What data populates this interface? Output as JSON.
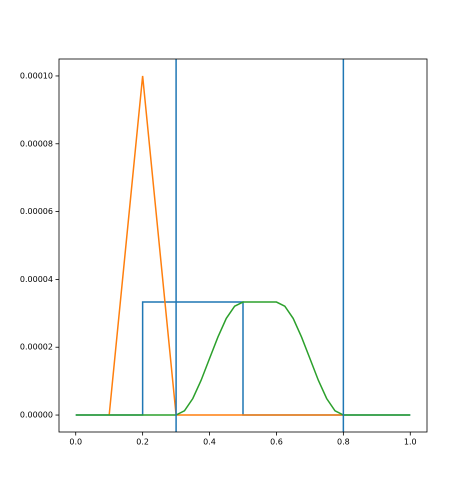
{
  "chart_data": {
    "type": "line",
    "xlim": [
      -0.05,
      1.05
    ],
    "ylim": [
      -5e-06,
      0.000105
    ],
    "xticks": [
      {
        "value": 0,
        "label": "0.0"
      },
      0.2,
      0.4,
      0.6,
      0.8,
      {
        "value": 1,
        "label": "1.0"
      }
    ],
    "yticks": [
      {
        "value": 0,
        "label": "0.00000"
      },
      {
        "value": 2e-05,
        "label": "0.00002"
      },
      {
        "value": 4e-05,
        "label": "0.00004"
      },
      {
        "value": 6e-05,
        "label": "0.00006"
      },
      {
        "value": 8e-05,
        "label": "0.00008"
      },
      {
        "value": 0.0001,
        "label": "0.00010"
      }
    ],
    "vlines": {
      "color": "#1f77b4",
      "x": [
        0.3,
        0.8
      ]
    },
    "series": [
      {
        "color": "#1f77b4",
        "x": [
          0,
          0.2,
          0.2,
          0.5,
          0.5,
          1
        ],
        "values": [
          0,
          0,
          3.333e-05,
          3.333e-05,
          0,
          0
        ]
      },
      {
        "color": "#ff7f0e",
        "x": [
          0.1,
          0.2,
          0.3,
          0.8
        ],
        "values": [
          0,
          0.0001,
          0,
          0
        ]
      },
      {
        "color": "#2ca02c",
        "x": [
          0,
          0.3,
          0.325,
          0.35,
          0.375,
          0.4,
          0.425,
          0.45,
          0.475,
          0.5,
          0.6,
          0.625,
          0.65,
          0.675,
          0.7,
          0.725,
          0.75,
          0.775,
          0.8,
          1
        ],
        "values": [
          0,
          0,
          1.27e-06,
          4.88e-06,
          1.03e-05,
          1.667e-05,
          2.3e-05,
          2.85e-05,
          3.21e-05,
          3.333e-05,
          3.333e-05,
          3.21e-05,
          2.85e-05,
          2.3e-05,
          1.667e-05,
          1.03e-05,
          4.88e-06,
          1.27e-06,
          0,
          0
        ]
      }
    ]
  }
}
